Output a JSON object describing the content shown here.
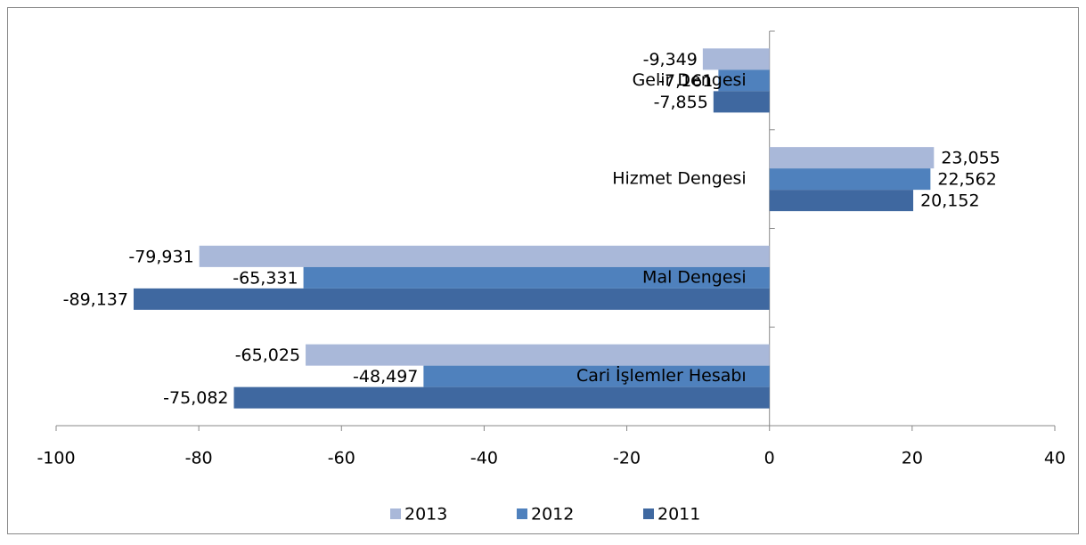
{
  "chart_data": {
    "type": "bar",
    "orientation": "horizontal",
    "categories": [
      "Cari İşlemler Hesabı",
      "Mal Dengesi",
      "Hizmet Dengesi",
      "Gelir Dengesi"
    ],
    "series": [
      {
        "name": "2013",
        "color": "#a9b8d9",
        "values": [
          -65.025,
          -79.931,
          23.055,
          -9.349
        ],
        "value_labels": [
          "-65,025",
          "-79,931",
          "23,055",
          "-9,349"
        ]
      },
      {
        "name": "2012",
        "color": "#4f81bd",
        "values": [
          -48.497,
          -65.331,
          22.562,
          -7.161
        ],
        "value_labels": [
          "-48,497",
          "-65,331",
          "22,562",
          "-7,161"
        ]
      },
      {
        "name": "2011",
        "color": "#3f68a0",
        "values": [
          -75.082,
          -89.137,
          20.152,
          -7.855
        ],
        "value_labels": [
          "-75,082",
          "-89,137",
          "20,152",
          "-7,855"
        ]
      }
    ],
    "xlim": [
      -100,
      40
    ],
    "xticks": [
      -100,
      -80,
      -60,
      -40,
      -20,
      0,
      20,
      40
    ],
    "legend": "bottom"
  }
}
